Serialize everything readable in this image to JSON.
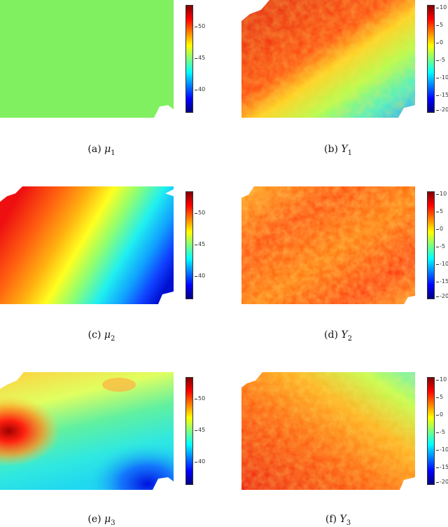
{
  "captions": [
    {
      "tag": "(a)",
      "sym": "μ",
      "sub": "1"
    },
    {
      "tag": "(b)",
      "sym": "Y",
      "sub": "1"
    },
    {
      "tag": "(c)",
      "sym": "μ",
      "sub": "2"
    },
    {
      "tag": "(d)",
      "sym": "Y",
      "sub": "2"
    },
    {
      "tag": "(e)",
      "sym": "μ",
      "sub": "3"
    },
    {
      "tag": "(f)",
      "sym": "Y",
      "sub": "3"
    }
  ],
  "colorbars": {
    "mu": {
      "ticks": [
        "50",
        "45",
        "40"
      ],
      "range": [
        36,
        53
      ]
    },
    "y": {
      "ticks": [
        "10",
        "5",
        "0",
        "-5",
        "-10",
        "-15",
        "-20"
      ],
      "range": [
        -20,
        11
      ]
    }
  },
  "colors": {
    "jet": [
      "#00007f",
      "#0000ff",
      "#007fff",
      "#00ffff",
      "#7fff7f",
      "#ffff00",
      "#ff7f00",
      "#ff0000",
      "#7f0000"
    ],
    "mu1_fill": "#80f060"
  }
}
